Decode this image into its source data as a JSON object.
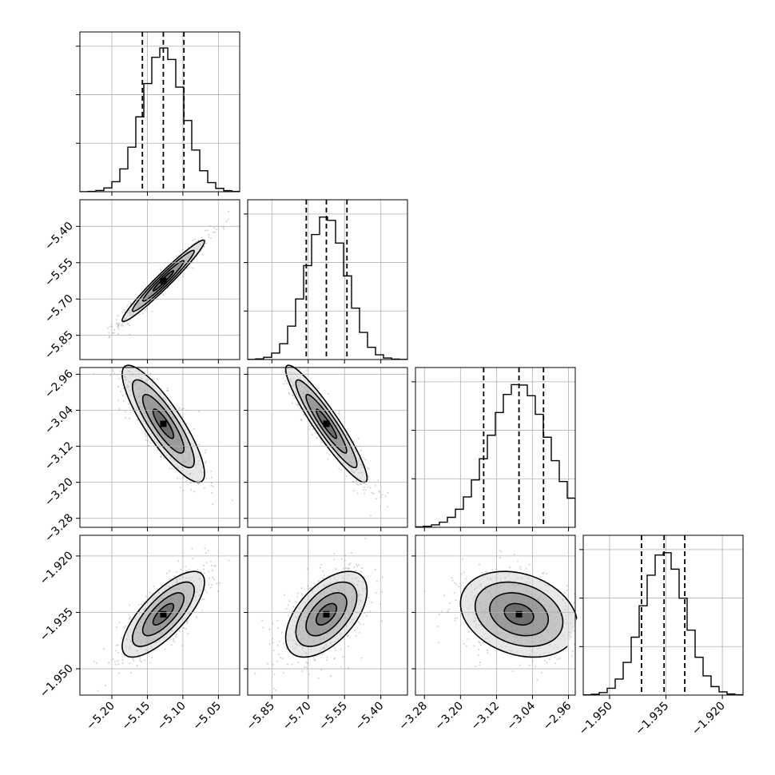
{
  "chart_data": {
    "type": "corner",
    "n_params": 4,
    "params": [
      {
        "range": [
          -5.245,
          -5.02
        ],
        "ticks": [
          -5.2,
          -5.15,
          -5.1,
          -5.05
        ],
        "tick_labels": [
          "−5.20",
          "−5.15",
          "−5.10",
          "−5.05"
        ],
        "median": -5.1275,
        "q16": -5.157,
        "q84": -5.0985,
        "sigma": 0.029
      },
      {
        "range": [
          -5.95,
          -5.29
        ],
        "ticks": [
          -5.85,
          -5.7,
          -5.55,
          -5.4
        ],
        "tick_labels": [
          "−5.85",
          "−5.70",
          "−5.55",
          "−5.40"
        ],
        "median": -5.625,
        "q16": -5.708,
        "q84": -5.54,
        "sigma": 0.084
      },
      {
        "range": [
          -3.3,
          -2.945
        ],
        "ticks": [
          -3.28,
          -3.2,
          -3.12,
          -3.04,
          -2.96
        ],
        "tick_labels": [
          "−3.28",
          "−3.20",
          "−3.12",
          "−3.04",
          "−2.96"
        ],
        "median": -3.07,
        "q16": -3.1485,
        "q84": -3.0155,
        "sigma": 0.065
      },
      {
        "range": [
          -1.957,
          -1.9145
        ],
        "ticks": [
          -1.95,
          -1.935,
          -1.92
        ],
        "tick_labels": [
          "−1.950",
          "−1.935",
          "−1.920"
        ],
        "median": -1.9355,
        "q16": -1.9415,
        "q84": -1.93,
        "sigma": 0.0057
      }
    ],
    "correlations": [
      [
        1.0,
        0.97,
        -0.85,
        0.75
      ],
      [
        0.97,
        1.0,
        -0.93,
        0.55
      ],
      [
        -0.85,
        -0.93,
        1.0,
        -0.25
      ],
      [
        0.75,
        0.55,
        -0.25,
        1.0
      ]
    ],
    "contour_levels_sigma": [
      0.5,
      1.0,
      1.5,
      2.0
    ],
    "grid": true,
    "histogram_bins": 20,
    "colors": {
      "line": "#000000",
      "grid": "#b0b0b0",
      "points": "#777777"
    }
  }
}
